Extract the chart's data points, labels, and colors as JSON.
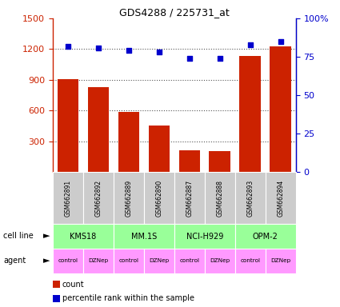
{
  "title": "GDS4288 / 225731_at",
  "samples": [
    "GSM662891",
    "GSM662892",
    "GSM662889",
    "GSM662890",
    "GSM662887",
    "GSM662888",
    "GSM662893",
    "GSM662894"
  ],
  "counts": [
    910,
    830,
    590,
    450,
    210,
    200,
    1130,
    1230
  ],
  "percentile_ranks": [
    82,
    81,
    79,
    78,
    74,
    74,
    83,
    85
  ],
  "cell_lines": [
    {
      "label": "KMS18",
      "start": 0,
      "end": 2
    },
    {
      "label": "MM.1S",
      "start": 2,
      "end": 4
    },
    {
      "label": "NCI-H929",
      "start": 4,
      "end": 6
    },
    {
      "label": "OPM-2",
      "start": 6,
      "end": 8
    }
  ],
  "agents": [
    "control",
    "DZNep",
    "control",
    "DZNep",
    "control",
    "DZNep",
    "control",
    "DZNep"
  ],
  "bar_color": "#cc2200",
  "scatter_color": "#0000cc",
  "left_axis_color": "#cc2200",
  "right_axis_color": "#0000cc",
  "ylim_left": [
    0,
    1500
  ],
  "ylim_right": [
    0,
    100
  ],
  "left_yticks": [
    300,
    600,
    900,
    1200,
    1500
  ],
  "right_yticks": [
    0,
    25,
    50,
    75,
    100
  ],
  "right_yticklabels": [
    "0",
    "25",
    "50",
    "75",
    "100%"
  ],
  "cell_line_color": "#99ff99",
  "agent_color": "#ff99ff",
  "sample_label_bg": "#cccccc",
  "legend_count_color": "#cc2200",
  "legend_scatter_color": "#0000cc",
  "dotted_line_color": "#555555",
  "fig_width": 4.25,
  "fig_height": 3.84,
  "dpi": 100
}
